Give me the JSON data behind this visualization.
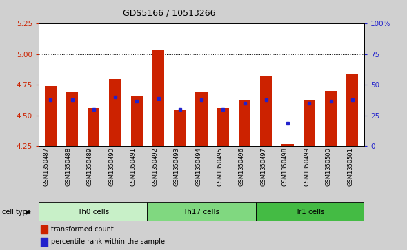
{
  "title": "GDS5166 / 10513266",
  "samples": [
    "GSM1350487",
    "GSM1350488",
    "GSM1350489",
    "GSM1350490",
    "GSM1350491",
    "GSM1350492",
    "GSM1350493",
    "GSM1350494",
    "GSM1350495",
    "GSM1350496",
    "GSM1350497",
    "GSM1350498",
    "GSM1350499",
    "GSM1350500",
    "GSM1350501"
  ],
  "red_values": [
    4.74,
    4.69,
    4.56,
    4.8,
    4.66,
    5.04,
    4.55,
    4.69,
    4.56,
    4.63,
    4.82,
    4.27,
    4.63,
    4.7,
    4.84
  ],
  "blue_values": [
    4.63,
    4.63,
    4.55,
    4.65,
    4.62,
    4.64,
    4.55,
    4.63,
    4.55,
    4.6,
    4.63,
    4.44,
    4.6,
    4.62,
    4.63
  ],
  "cell_groups": [
    {
      "label": "Th0 cells",
      "start": 0,
      "end": 5,
      "color": "#c8f0c8"
    },
    {
      "label": "Th17 cells",
      "start": 5,
      "end": 10,
      "color": "#80d880"
    },
    {
      "label": "Tr1 cells",
      "start": 10,
      "end": 15,
      "color": "#44bb44"
    }
  ],
  "ymin": 4.25,
  "ymax": 5.25,
  "yticks": [
    4.25,
    4.5,
    4.75,
    5.0,
    5.25
  ],
  "grid_lines": [
    4.5,
    4.75,
    5.0
  ],
  "right_ytick_pcts": [
    0,
    25,
    50,
    75,
    100
  ],
  "right_yticklabels": [
    "0",
    "25",
    "50",
    "75",
    "100%"
  ],
  "bar_color": "#cc2200",
  "dot_color": "#2222cc",
  "bar_width": 0.55,
  "background_color": "#d0d0d0",
  "plot_bg_color": "#ffffff",
  "ylabel_color": "#cc2200",
  "right_ylabel_color": "#2222cc",
  "title_fontsize": 9,
  "tick_fontsize": 7.5,
  "label_fontsize": 6.0,
  "cell_type_fontsize": 7.5,
  "legend_fontsize": 7
}
